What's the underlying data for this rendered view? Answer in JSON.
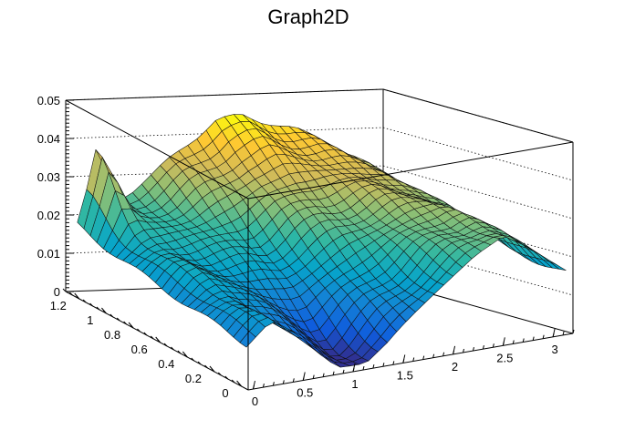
{
  "chart_data": {
    "type": "surface",
    "title": "Graph2D",
    "x_ticks": [
      "0",
      "0.5",
      "1",
      "1.5",
      "2",
      "2.5",
      "3"
    ],
    "x_tick_values": [
      0,
      0.5,
      1,
      1.5,
      2,
      2.5,
      3
    ],
    "y_ticks": [
      "0",
      "0.2",
      "0.4",
      "0.6",
      "0.8",
      "1",
      "1.2"
    ],
    "y_tick_values": [
      0,
      0.2,
      0.4,
      0.6,
      0.8,
      1.0,
      1.2
    ],
    "z_ticks": [
      "0",
      "0.01",
      "0.02",
      "0.03",
      "0.04",
      "0.05"
    ],
    "z_tick_values": [
      0,
      0.01,
      0.02,
      0.03,
      0.04,
      0.05
    ],
    "xlim": [
      -0.05,
      3.2
    ],
    "ylim": [
      -0.05,
      1.3
    ],
    "zlim": [
      0,
      0.05
    ],
    "grid": true,
    "colormap": [
      "#352a87",
      "#0f5cdd",
      "#1481d6",
      "#06a4ca",
      "#2eb7a4",
      "#87bf77",
      "#d1bb59",
      "#fec832",
      "#f9fb0e"
    ],
    "surface_profile": {
      "x": [
        0.0,
        0.25,
        0.5,
        0.8,
        1.1,
        1.4,
        1.7,
        2.0,
        2.3,
        2.6,
        2.9,
        3.2
      ],
      "z_at_y_max": [
        0.018,
        0.022,
        0.026,
        0.031,
        0.038,
        0.044,
        0.045,
        0.043,
        0.04,
        0.037,
        0.032,
        0.025
      ],
      "z_at_y_min": [
        0.01,
        0.016,
        0.012,
        0.006,
        0.002,
        0.006,
        0.012,
        0.018,
        0.024,
        0.028,
        0.022,
        0.016
      ],
      "peak": {
        "x": 0.2,
        "y": 1.25,
        "z": 0.035
      }
    }
  }
}
